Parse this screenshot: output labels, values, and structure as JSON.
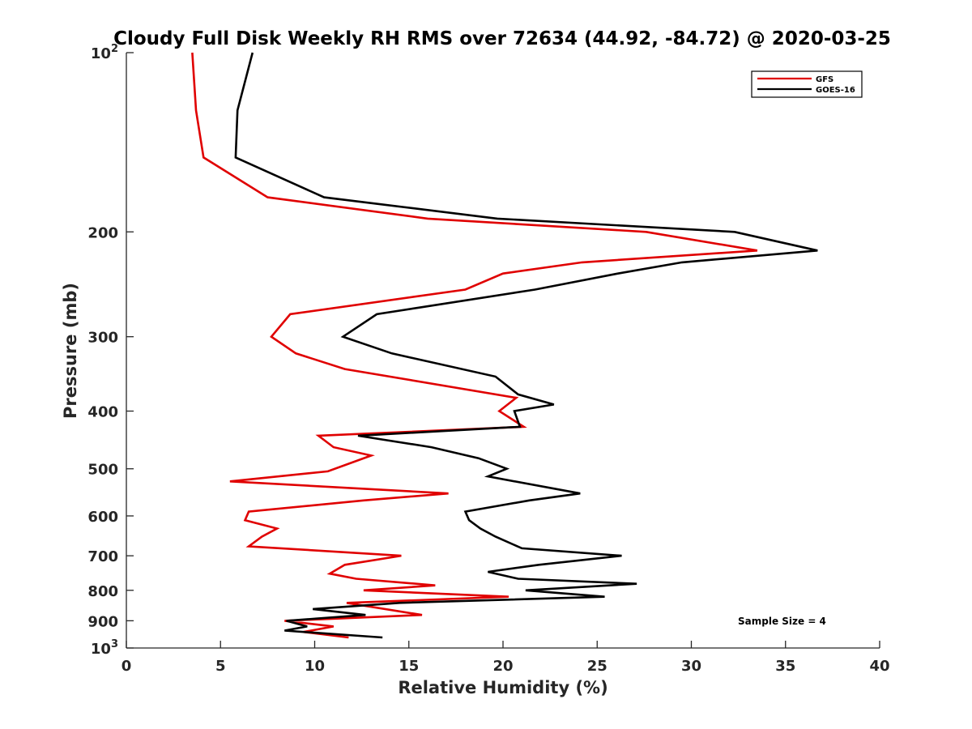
{
  "chart_data": {
    "type": "line",
    "title": "Cloudy Full Disk Weekly RH RMS over 72634 (44.92, -84.72) @ 2020-03-25",
    "xlabel": "Relative Humidity (%)",
    "ylabel": "Pressure (mb)",
    "xlim": [
      0,
      40
    ],
    "ylim": [
      100,
      1000
    ],
    "y_scale": "log",
    "y_reversed": true,
    "grid": false,
    "legend_position": "top-right",
    "annotation": "Sample Size = 4",
    "x_ticks": [
      "0",
      "5",
      "10",
      "15",
      "20",
      "25",
      "30",
      "35",
      "40"
    ],
    "x_tick_values": [
      0,
      5,
      10,
      15,
      20,
      25,
      30,
      35,
      40
    ],
    "y_ticks": [
      {
        "value": 100,
        "base": "10",
        "exp": "2"
      },
      {
        "value": 200,
        "label": "200"
      },
      {
        "value": 300,
        "label": "300"
      },
      {
        "value": 400,
        "label": "400"
      },
      {
        "value": 500,
        "label": "500"
      },
      {
        "value": 600,
        "label": "600"
      },
      {
        "value": 700,
        "label": "700"
      },
      {
        "value": 800,
        "label": "800"
      },
      {
        "value": 900,
        "label": "900"
      },
      {
        "value": 1000,
        "base": "10",
        "exp": "3"
      }
    ],
    "series": [
      {
        "name": "GFS",
        "color": "#e00000",
        "points": [
          [
            3.5,
            100
          ],
          [
            3.7,
            125
          ],
          [
            4.1,
            150
          ],
          [
            7.5,
            175
          ],
          [
            16.0,
            190
          ],
          [
            27.6,
            200
          ],
          [
            33.5,
            215
          ],
          [
            24.2,
            225
          ],
          [
            20.0,
            235
          ],
          [
            18.0,
            250
          ],
          [
            8.7,
            275
          ],
          [
            7.7,
            300
          ],
          [
            9.0,
            320
          ],
          [
            11.6,
            340
          ],
          [
            20.7,
            380
          ],
          [
            19.8,
            400
          ],
          [
            21.1,
            425
          ],
          [
            10.2,
            440
          ],
          [
            11.0,
            460
          ],
          [
            13.0,
            475
          ],
          [
            10.7,
            505
          ],
          [
            5.5,
            525
          ],
          [
            17.1,
            550
          ],
          [
            12.6,
            565
          ],
          [
            6.5,
            590
          ],
          [
            6.3,
            610
          ],
          [
            8.0,
            630
          ],
          [
            7.2,
            650
          ],
          [
            6.5,
            675
          ],
          [
            14.6,
            700
          ],
          [
            11.6,
            725
          ],
          [
            10.8,
            750
          ],
          [
            12.2,
            765
          ],
          [
            16.4,
            785
          ],
          [
            12.6,
            800
          ],
          [
            20.3,
            820
          ],
          [
            11.7,
            840
          ],
          [
            15.7,
            880
          ],
          [
            8.4,
            900
          ],
          [
            11.0,
            920
          ],
          [
            9.4,
            940
          ],
          [
            11.8,
            960
          ]
        ]
      },
      {
        "name": "GOES-16",
        "color": "#000000",
        "points": [
          [
            6.7,
            100
          ],
          [
            5.9,
            125
          ],
          [
            5.8,
            150
          ],
          [
            10.5,
            175
          ],
          [
            19.7,
            190
          ],
          [
            32.3,
            200
          ],
          [
            36.7,
            215
          ],
          [
            29.5,
            225
          ],
          [
            26.1,
            235
          ],
          [
            21.7,
            250
          ],
          [
            13.3,
            275
          ],
          [
            11.5,
            300
          ],
          [
            14.1,
            320
          ],
          [
            19.6,
            350
          ],
          [
            20.8,
            375
          ],
          [
            22.7,
            390
          ],
          [
            20.6,
            400
          ],
          [
            20.9,
            425
          ],
          [
            12.3,
            440
          ],
          [
            16.2,
            460
          ],
          [
            18.7,
            480
          ],
          [
            20.2,
            500
          ],
          [
            19.2,
            515
          ],
          [
            24.1,
            550
          ],
          [
            21.4,
            565
          ],
          [
            18.0,
            590
          ],
          [
            18.2,
            610
          ],
          [
            18.8,
            630
          ],
          [
            19.6,
            650
          ],
          [
            21.0,
            680
          ],
          [
            26.3,
            700
          ],
          [
            21.9,
            725
          ],
          [
            19.2,
            745
          ],
          [
            20.8,
            765
          ],
          [
            27.1,
            780
          ],
          [
            21.2,
            800
          ],
          [
            25.4,
            820
          ],
          [
            14.5,
            840
          ],
          [
            9.9,
            860
          ],
          [
            12.7,
            880
          ],
          [
            8.5,
            900
          ],
          [
            9.6,
            920
          ],
          [
            8.4,
            935
          ],
          [
            13.6,
            960
          ]
        ]
      }
    ]
  }
}
